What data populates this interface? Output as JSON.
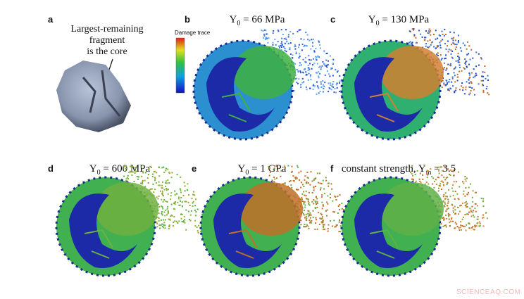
{
  "panel_a": {
    "letter": "a",
    "note_lines": [
      "Largest-remaining",
      "fragment",
      "is the core"
    ],
    "colorbar_label": "Damage trace"
  },
  "panels": [
    {
      "letter": "b",
      "title": {
        "symbol": "Y",
        "subscript": "0",
        "rest": " = 66 MPa"
      }
    },
    {
      "letter": "c",
      "title": {
        "symbol": "Y",
        "subscript": "0",
        "rest": " = 130 MPa"
      }
    },
    {
      "letter": "d",
      "title": {
        "symbol": "Y",
        "subscript": "0",
        "rest": " = 600 MPa"
      }
    },
    {
      "letter": "e",
      "title": {
        "symbol": "Y",
        "subscript": "0",
        "rest": " = 1 GPa"
      }
    },
    {
      "letter": "f",
      "title": {
        "prefix": "constant strength, ",
        "symbol": "Y",
        "subscript": "m",
        "rest": " = 3.5"
      }
    }
  ],
  "watermark": "SCIENCEAQ.COM"
}
